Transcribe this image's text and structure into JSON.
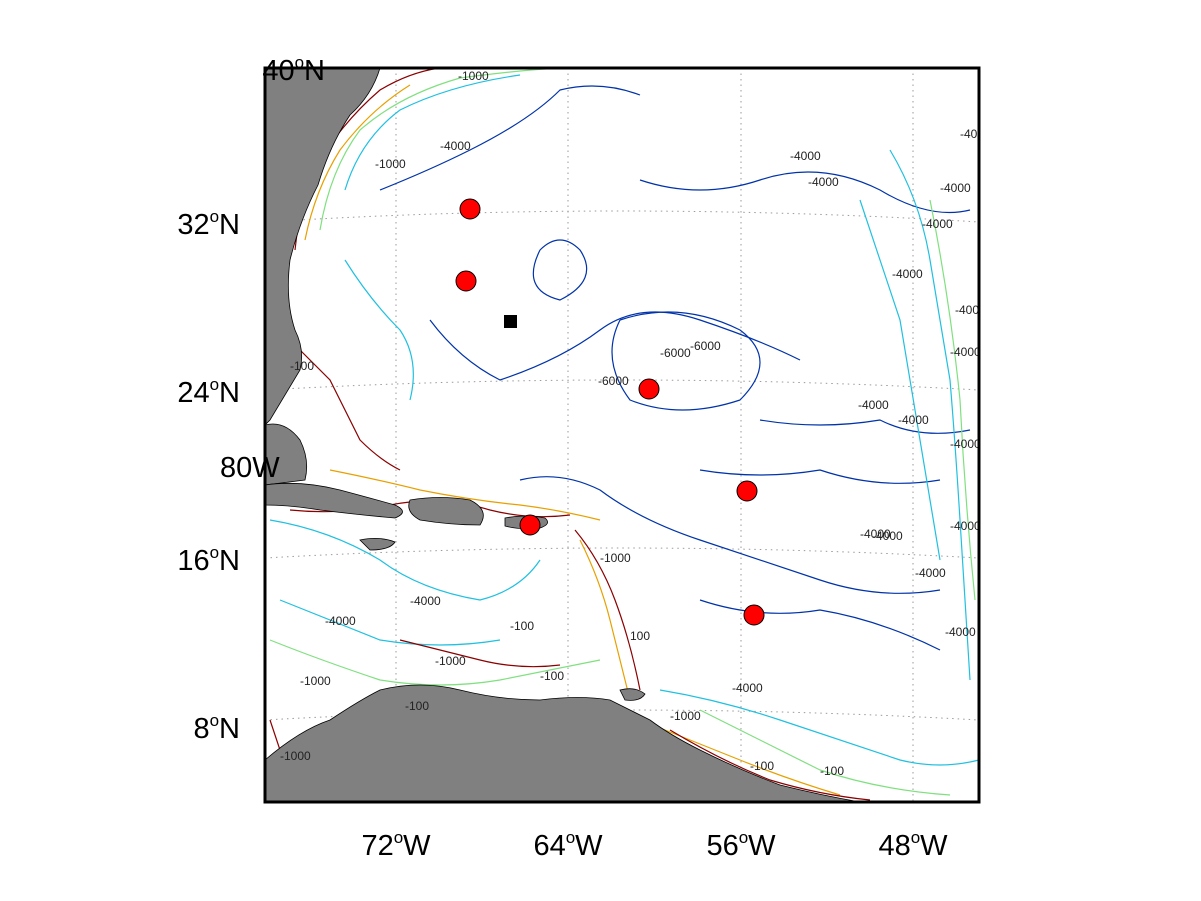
{
  "map": {
    "projection": "conic",
    "extent": {
      "lon": [
        -76,
        -46
      ],
      "lat": [
        6,
        40
      ]
    },
    "graticule": "dotted",
    "colors": {
      "land": "#808080",
      "ocean": "#ffffff",
      "frame": "#000000",
      "station_marker": "#ff0000",
      "reference_marker": "#000000",
      "contour_shallow": "#8b0000",
      "contour_mid": "#e8a000",
      "contour_1000": "#7fe07f",
      "contour_4000": "#20c0e0",
      "contour_6000": "#0033aa"
    },
    "lat_labels": [
      {
        "deg": "40",
        "hemi": "N",
        "lat": 40
      },
      {
        "deg": "32",
        "hemi": "N",
        "lat": 32
      },
      {
        "deg": "24",
        "hemi": "N",
        "lat": 24
      },
      {
        "deg": "16",
        "hemi": "N",
        "lat": 16
      },
      {
        "deg": "8",
        "hemi": "N",
        "lat": 8
      }
    ],
    "lon_labels": [
      {
        "deg": "72",
        "hemi": "W",
        "lon": -72
      },
      {
        "deg": "64",
        "hemi": "W",
        "lon": -64
      },
      {
        "deg": "56",
        "hemi": "W",
        "lon": -56
      },
      {
        "deg": "48",
        "hemi": "W",
        "lon": -48
      }
    ],
    "inner_label": {
      "deg": "80",
      "hemi": "W"
    },
    "stations": [
      {
        "lon": -66.5,
        "lat": 32.3
      },
      {
        "lon": -66.8,
        "lat": 28.8
      },
      {
        "lon": -59.3,
        "lat": 24.0
      },
      {
        "lon": -55.5,
        "lat": 19.0
      },
      {
        "lon": -65.0,
        "lat": 17.4
      },
      {
        "lon": -55.0,
        "lat": 13.0
      }
    ],
    "reference_point": {
      "lon": -65.2,
      "lat": 26.9
    },
    "contour_labels": [
      "-1000",
      "-4000",
      "-4000",
      "-1000",
      "-4000",
      "-4000",
      "-4000",
      "-4000",
      "-4000",
      "-4000",
      "-4000",
      "-4000",
      "-4000",
      "-4000",
      "-4000",
      "-4000",
      "-6000",
      "-6000",
      "-6000",
      "-4000",
      "-4000",
      "-1000",
      "-4000",
      "-4000",
      "-1000",
      "-1000",
      "-4000",
      "-1000",
      "-100",
      "-100",
      "-100",
      "-100",
      "-1000",
      "-100",
      "100",
      "-100",
      "-4000"
    ]
  }
}
